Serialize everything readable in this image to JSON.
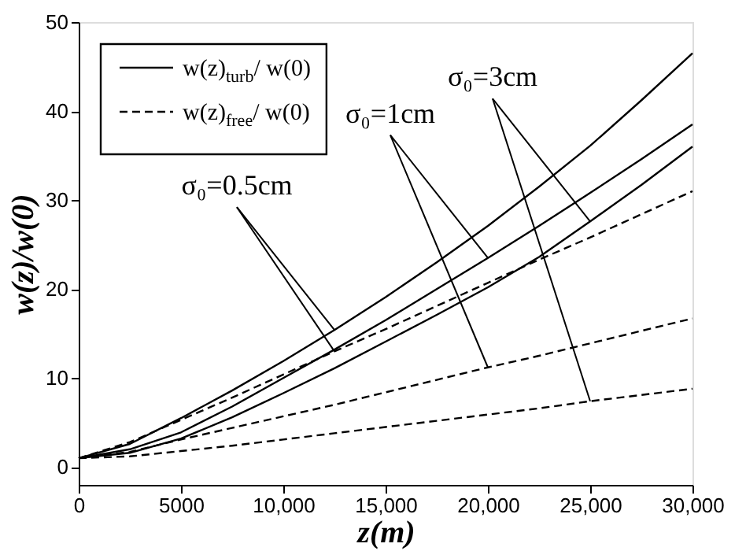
{
  "chart_data": {
    "type": "line",
    "xlabel": "z(m)",
    "ylabel": "w(z)/w(0)",
    "x": [
      0,
      2500,
      5000,
      7500,
      10000,
      12500,
      15000,
      17500,
      20000,
      22500,
      25000,
      27500,
      30000
    ],
    "series": [
      {
        "name": "w(z)$_{turb}$/ w(0)",
        "color": "#000000",
        "line_style": "solid",
        "values": [
          1,
          2.6,
          5.5,
          8.6,
          11.9,
          15.4,
          19.1,
          23.0,
          27.1,
          31.5,
          36.1,
          41.2,
          46.5
        ]
      },
      {
        "color": "#000000",
        "line_style": "solid",
        "values": [
          1,
          2.0,
          3.9,
          6.8,
          10.0,
          13.2,
          16.5,
          20.0,
          23.5,
          27.1,
          30.8,
          34.6,
          38.5
        ]
      },
      {
        "color": "#000000",
        "line_style": "solid",
        "values": [
          1,
          1.6,
          3.2,
          5.6,
          8.3,
          11.1,
          14.1,
          17.1,
          20.2,
          23.6,
          27.6,
          31.7,
          36.0
        ]
      },
      {
        "name": "w(z)$_{free}$/ w(0)",
        "color": "#000000",
        "line_style": "dashed",
        "values": [
          1,
          2.8,
          5.3,
          7.8,
          10.4,
          13.0,
          15.5,
          18.1,
          20.7,
          23.3,
          25.8,
          28.4,
          31.0
        ]
      },
      {
        "color": "#000000",
        "line_style": "dashed",
        "values": [
          1,
          1.7,
          3.1,
          4.4,
          5.7,
          7.0,
          8.4,
          9.8,
          11.2,
          12.5,
          13.9,
          15.3,
          16.7
        ]
      },
      {
        "color": "#000000",
        "line_style": "dashed",
        "values": [
          1,
          1.2,
          1.8,
          2.4,
          3.1,
          3.8,
          4.5,
          5.2,
          5.9,
          6.6,
          7.4,
          8.1,
          8.8
        ]
      }
    ],
    "xlim": [
      0,
      30000
    ],
    "xticks": [
      0,
      5000,
      {
        "value": 10000,
        "label": "10,000"
      },
      {
        "value": 15000,
        "label": "15,000"
      },
      {
        "value": 20000,
        "label": "20,000"
      },
      {
        "value": 25000,
        "label": "25,000"
      },
      {
        "value": 30000,
        "label": "30,000"
      }
    ],
    "ylim": [
      -2,
      50
    ],
    "yticks": [
      0,
      10,
      20,
      30,
      40,
      50
    ],
    "grid": false,
    "legend": "top left",
    "marker": "none",
    "annotations": [
      {
        "text": "σ₀=0.5cm",
        "x": 12500,
        "y": 15.4
      },
      {
        "text": "σ₀=1cm",
        "x": 20000,
        "y": 23.5
      },
      {
        "text": "σ₀=3cm",
        "x": 25000,
        "y": 27.6
      }
    ]
  }
}
